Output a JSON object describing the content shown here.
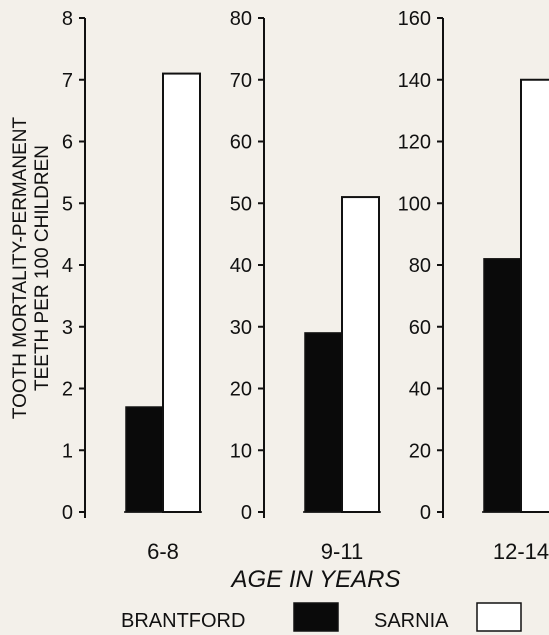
{
  "chart_data": {
    "type": "bar",
    "ylabel_lines": [
      "TOOTH MORTALITY-PERMANENT",
      "TEETH PER 100 CHILDREN"
    ],
    "xlabel": "AGE IN YEARS",
    "legend": [
      {
        "label": "BRANTFORD",
        "fill": "#0a0a0a"
      },
      {
        "label": "SARNIA",
        "fill": "#ffffff"
      }
    ],
    "panels": [
      {
        "category": "6-8",
        "ylim": [
          0,
          8
        ],
        "ticks": [
          "0",
          "1",
          "2",
          "3",
          "4",
          "5",
          "6",
          "7",
          "8"
        ],
        "values": {
          "BRANTFORD": 1.7,
          "SARNIA": 7.1
        }
      },
      {
        "category": "9-11",
        "ylim": [
          0,
          80
        ],
        "ticks": [
          "0",
          "10",
          "20",
          "30",
          "40",
          "50",
          "60",
          "70",
          "80"
        ],
        "values": {
          "BRANTFORD": 29,
          "SARNIA": 51
        }
      },
      {
        "category": "12-14",
        "ylim": [
          0,
          160
        ],
        "ticks": [
          "0",
          "20",
          "40",
          "60",
          "80",
          "100",
          "120",
          "140",
          "160"
        ],
        "values": {
          "BRANTFORD": 82,
          "SARNIA": 140
        }
      }
    ]
  }
}
